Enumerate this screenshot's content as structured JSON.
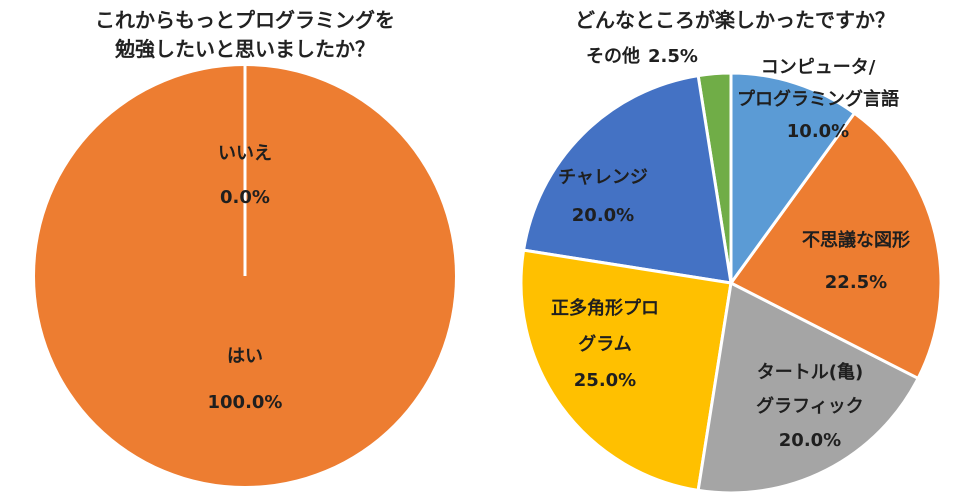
{
  "chart_data": [
    {
      "type": "pie",
      "title_lines": [
        "これからもっとプログラミングを",
        "勉強したいと思いましたか？"
      ],
      "slices": [
        {
          "label_lines": [
            "いいえ"
          ],
          "value": 0.0,
          "percent_label": "0.0%",
          "color": "#ED7D31"
        },
        {
          "label_lines": [
            "はい"
          ],
          "value": 100.0,
          "percent_label": "100.0%",
          "color": "#ED7D31"
        }
      ],
      "start_angle_deg": 0,
      "direction": "clockwise",
      "border_color": "#ffffff"
    },
    {
      "type": "pie",
      "title_lines": [
        "どんなところが楽しかったですか？"
      ],
      "slices": [
        {
          "label_lines": [
            "コンピュータ/",
            "プログラミング言語"
          ],
          "value": 10.0,
          "percent_label": "10.0%",
          "color": "#5B9BD5"
        },
        {
          "label_lines": [
            "不思議な図形"
          ],
          "value": 22.5,
          "percent_label": "22.5%",
          "color": "#ED7D31"
        },
        {
          "label_lines": [
            "タートル(亀)",
            "グラフィック"
          ],
          "value": 20.0,
          "percent_label": "20.0%",
          "color": "#A5A5A5"
        },
        {
          "label_lines": [
            "正多角形プロ",
            "グラム"
          ],
          "value": 25.0,
          "percent_label": "25.0%",
          "color": "#FFC000"
        },
        {
          "label_lines": [
            "チャレンジ"
          ],
          "value": 20.0,
          "percent_label": "20.0%",
          "color": "#4472C4"
        },
        {
          "label_lines": [
            "その他"
          ],
          "value": 2.5,
          "percent_label": "2.5%",
          "color": "#70AD47"
        }
      ],
      "start_angle_deg": 0,
      "direction": "clockwise",
      "border_color": "#ffffff"
    }
  ]
}
